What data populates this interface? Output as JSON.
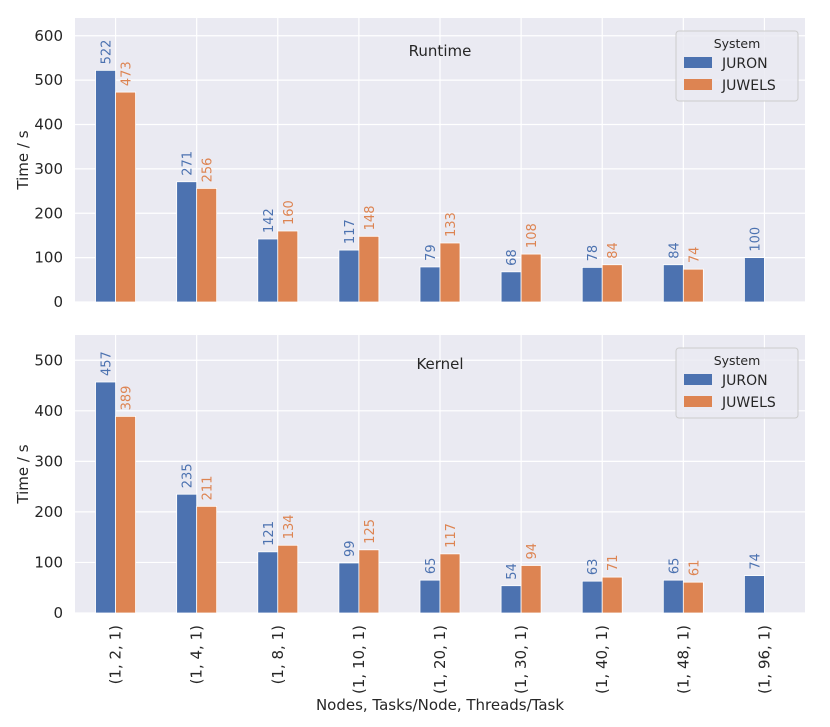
{
  "chart_data": {
    "type": "bar",
    "categories": [
      "(1, 2, 1)",
      "(1, 4, 1)",
      "(1, 8, 1)",
      "(1, 10, 1)",
      "(1, 20, 1)",
      "(1, 30, 1)",
      "(1, 40, 1)",
      "(1, 48, 1)",
      "(1, 96, 1)"
    ],
    "xlabel": "Nodes, Tasks/Node, Threads/Task",
    "legend": {
      "title": "System",
      "position": "top-right"
    },
    "colors": {
      "JURON": "#4C72B0",
      "JUWELS": "#DD8452",
      "background": "#EAEAF2",
      "grid": "#FFFFFF",
      "text": "#262626"
    },
    "grid": true,
    "panels": [
      {
        "title": "Runtime",
        "ylabel": "Time / s",
        "ylim": [
          0,
          640
        ],
        "yticks": [
          0,
          100,
          200,
          300,
          400,
          500,
          600
        ],
        "series": [
          {
            "name": "JURON",
            "values": [
              522,
              271,
              142,
              117,
              79,
              68,
              78,
              84,
              100
            ]
          },
          {
            "name": "JUWELS",
            "values": [
              473,
              256,
              160,
              148,
              133,
              108,
              84,
              74,
              null
            ]
          }
        ]
      },
      {
        "title": "Kernel",
        "ylabel": "Time / s",
        "ylim": [
          0,
          550
        ],
        "yticks": [
          0,
          100,
          200,
          300,
          400,
          500
        ],
        "series": [
          {
            "name": "JURON",
            "values": [
              457,
              235,
              121,
              99,
              65,
              54,
              63,
              65,
              74
            ]
          },
          {
            "name": "JUWELS",
            "values": [
              389,
              211,
              134,
              125,
              117,
              94,
              71,
              61,
              null
            ]
          }
        ]
      }
    ]
  }
}
